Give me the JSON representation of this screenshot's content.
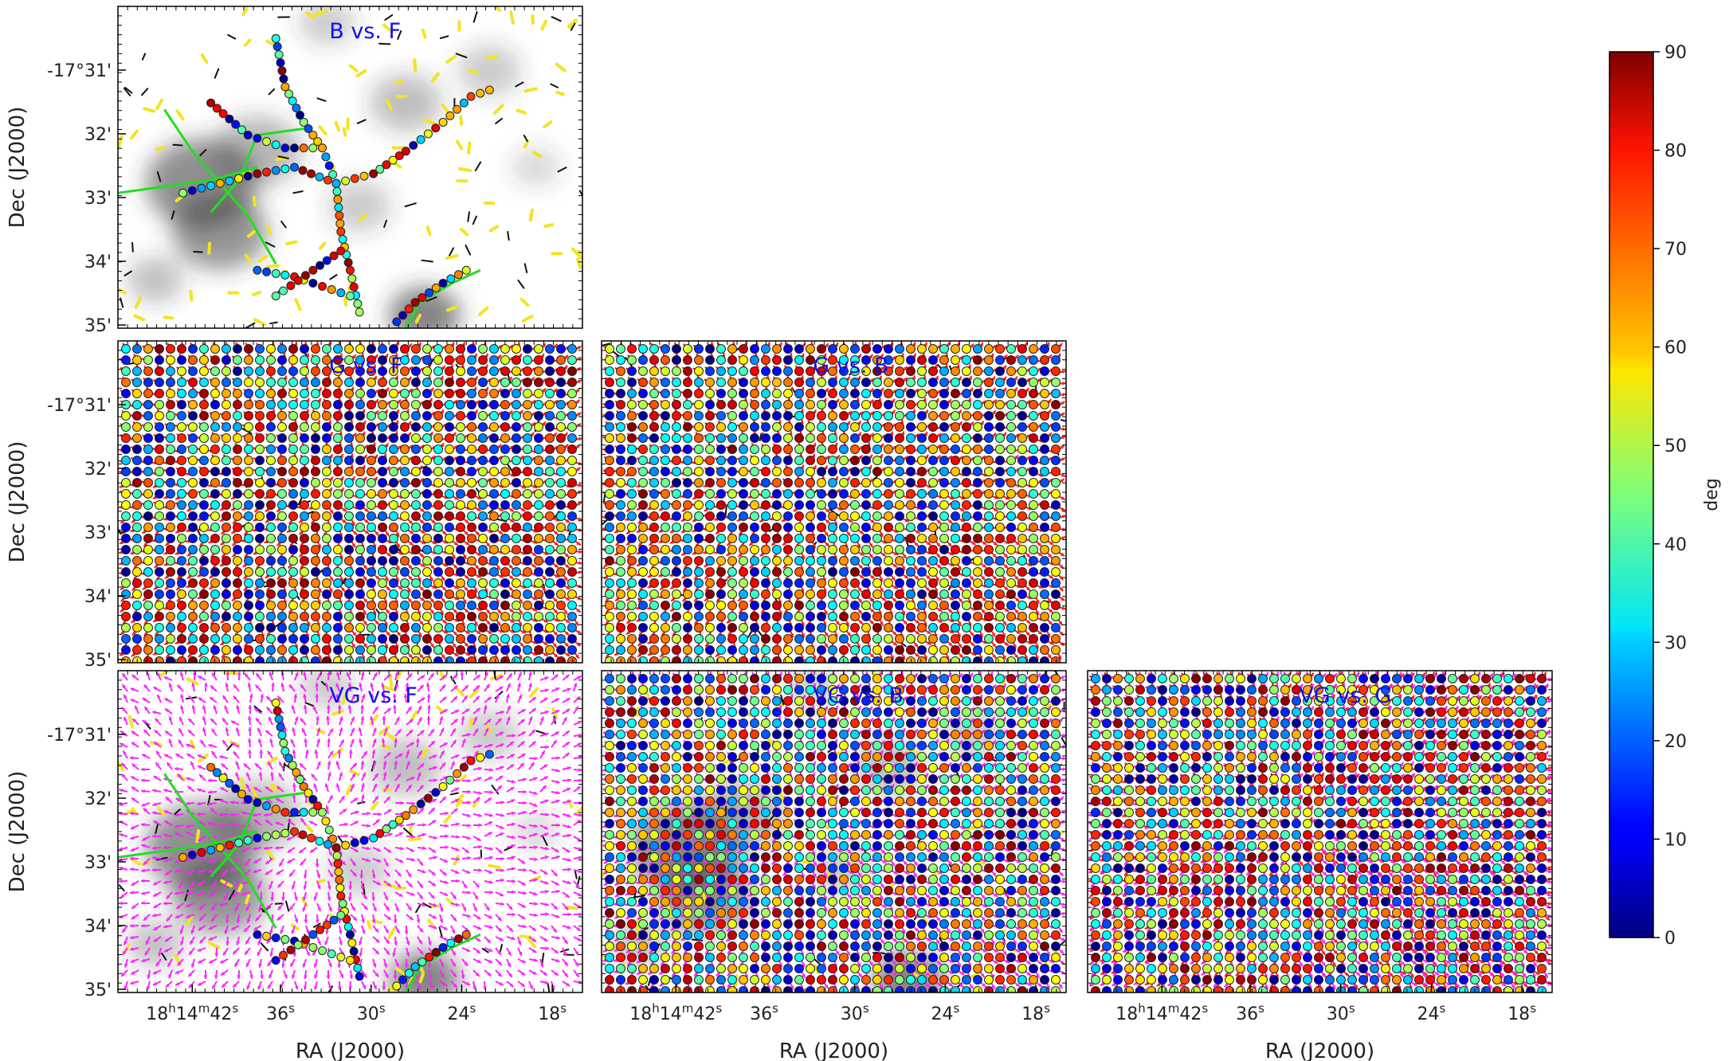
{
  "chart_data": {
    "type": "heatmap",
    "colorbar": {
      "label": "deg",
      "range": [
        0,
        90
      ],
      "ticks": [
        "0",
        "10",
        "20",
        "30",
        "40",
        "50",
        "60",
        "70",
        "80",
        "90"
      ],
      "colormap": "jet"
    },
    "axes": {
      "xlabel": "RA (J2000)",
      "ylabel": "Dec (J2000)",
      "x_ticks": [
        {
          "h": "18",
          "hu": "h",
          "m": "14",
          "mu": "m",
          "s": "42",
          "su": "s"
        },
        {
          "s": "36",
          "su": "s"
        },
        {
          "s": "30",
          "su": "s"
        },
        {
          "s": "24",
          "su": "s"
        },
        {
          "s": "18",
          "su": "s"
        }
      ],
      "y_ticks": [
        "-17°31'",
        "32'",
        "33'",
        "34'",
        "35'"
      ]
    },
    "panels": [
      {
        "title": "B vs. F",
        "background": "intensity",
        "arrows": "none",
        "filament": "filaments"
      },
      {
        "title": "G vs. F",
        "background": "none",
        "arrows": "red",
        "filament": "grid"
      },
      {
        "title": "G vs. B",
        "background": "none",
        "arrows": "red",
        "filament": "grid"
      },
      {
        "title": "VG vs. F",
        "background": "intensity",
        "arrows": "magenta",
        "filament": "filaments"
      },
      {
        "title": "VG vs. B",
        "background": "intensity",
        "arrows": "magenta",
        "filament": "grid"
      },
      {
        "title": "VG vs. G",
        "background": "none",
        "arrows": "red+magenta",
        "filament": "grid"
      }
    ],
    "colors": {
      "title": "#1010ee",
      "gradient_arrow": "#ff1a1a",
      "velocity_gradient_arrow": "#ff22ff",
      "filament_line": "#22dd22",
      "polarization_segment": "#f2e422"
    }
  }
}
